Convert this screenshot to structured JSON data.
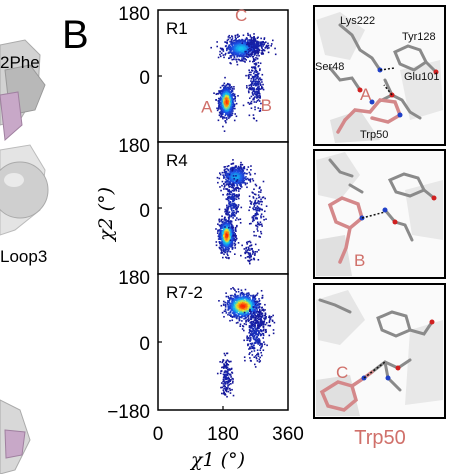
{
  "left_partial": {
    "label_top": "2Phe",
    "label_mid": "Loop3"
  },
  "panel_letter": "B",
  "colors": {
    "state_label": "#d0706a",
    "density_low": "#1a1aa0",
    "density_mid": "#16c8f0",
    "density_high": "#ff2a00",
    "pink_residue": "#d4888a",
    "grey_residue": "#9a9a9a"
  },
  "chart_data": {
    "type": "scatter",
    "subtype": "2d-density",
    "xlabel": "χ1 (°)",
    "ylabel": "χ2 (°)",
    "xlim": [
      0,
      360
    ],
    "ylim": [
      -180,
      180
    ],
    "x_ticks": [
      "0",
      "180",
      "360"
    ],
    "y_ticks": [
      "180",
      "0",
      "−180"
    ],
    "panels": [
      {
        "name": "R1",
        "state_labels": [
          {
            "text": "C",
            "x": 230,
            "y": 150
          },
          {
            "text": "A",
            "x": 135,
            "y": -100
          },
          {
            "text": "B",
            "x": 300,
            "y": -95
          }
        ],
        "clusters": [
          {
            "x": 190,
            "y": -70,
            "sx": 10,
            "sy": 20,
            "n": 900,
            "peak": 1.0
          },
          {
            "x": 230,
            "y": 75,
            "sx": 22,
            "sy": 14,
            "n": 650,
            "peak": 0.55
          },
          {
            "x": 270,
            "y": -20,
            "sx": 10,
            "sy": 40,
            "n": 220,
            "peak": 0.1
          },
          {
            "x": 275,
            "y": 85,
            "sx": 18,
            "sy": 12,
            "n": 140,
            "peak": 0.08
          }
        ]
      },
      {
        "name": "R4",
        "state_labels": [],
        "clusters": [
          {
            "x": 190,
            "y": -75,
            "sx": 10,
            "sy": 20,
            "n": 900,
            "peak": 1.0
          },
          {
            "x": 215,
            "y": 85,
            "sx": 18,
            "sy": 14,
            "n": 500,
            "peak": 0.5
          },
          {
            "x": 205,
            "y": 10,
            "sx": 10,
            "sy": 35,
            "n": 220,
            "peak": 0.15
          },
          {
            "x": 275,
            "y": -10,
            "sx": 10,
            "sy": 30,
            "n": 120,
            "peak": 0.08
          },
          {
            "x": 255,
            "y": -120,
            "sx": 10,
            "sy": 15,
            "n": 60,
            "peak": 0.05
          }
        ]
      },
      {
        "name": "R7-2",
        "state_labels": [],
        "clusters": [
          {
            "x": 235,
            "y": 95,
            "sx": 22,
            "sy": 16,
            "n": 900,
            "peak": 1.0
          },
          {
            "x": 270,
            "y": 20,
            "sx": 14,
            "sy": 35,
            "n": 300,
            "peak": 0.15
          },
          {
            "x": 190,
            "y": -90,
            "sx": 8,
            "sy": 25,
            "n": 160,
            "peak": 0.08
          },
          {
            "x": 290,
            "y": 60,
            "sx": 15,
            "sy": 15,
            "n": 80,
            "peak": 0.05
          }
        ]
      }
    ]
  },
  "structures": {
    "top": {
      "labels": [
        "Lys222",
        "Tyr128",
        "Ser48",
        "Glu101",
        "A",
        "Trp50"
      ]
    },
    "middle": {
      "labels": [
        "B"
      ]
    },
    "bottom": {
      "labels": [
        "C"
      ]
    },
    "caption": "Trp50"
  }
}
